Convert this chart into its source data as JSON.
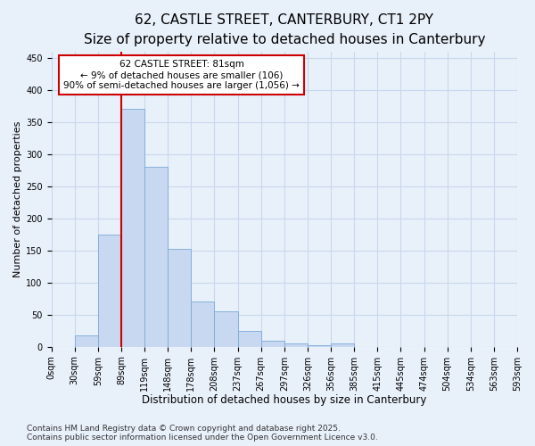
{
  "title_line1": "62, CASTLE STREET, CANTERBURY, CT1 2PY",
  "title_line2": "Size of property relative to detached houses in Canterbury",
  "xlabel": "Distribution of detached houses by size in Canterbury",
  "ylabel": "Number of detached properties",
  "bar_values": [
    0,
    18,
    175,
    370,
    280,
    153,
    71,
    55,
    25,
    10,
    5,
    2,
    5,
    0,
    0,
    0,
    0,
    0,
    0,
    0
  ],
  "tick_labels": [
    "0sqm",
    "30sqm",
    "59sqm",
    "89sqm",
    "119sqm",
    "148sqm",
    "178sqm",
    "208sqm",
    "237sqm",
    "267sqm",
    "297sqm",
    "326sqm",
    "356sqm",
    "385sqm",
    "415sqm",
    "445sqm",
    "474sqm",
    "504sqm",
    "534sqm",
    "563sqm",
    "593sqm"
  ],
  "bar_color": "#c8d8f0",
  "bar_edge_color": "#7aaad8",
  "bar_width": 1.0,
  "vline_x": 3.0,
  "vline_color": "#cc0000",
  "annotation_text": "62 CASTLE STREET: 81sqm\n← 9% of detached houses are smaller (106)\n90% of semi-detached houses are larger (1,056) →",
  "annotation_box_color": "#ffffff",
  "annotation_box_edge": "#cc0000",
  "ylim": [
    0,
    460
  ],
  "yticks": [
    0,
    50,
    100,
    150,
    200,
    250,
    300,
    350,
    400,
    450
  ],
  "grid_color": "#c8d8ec",
  "bg_color": "#e8f0fa",
  "footer_text": "Contains HM Land Registry data © Crown copyright and database right 2025.\nContains public sector information licensed under the Open Government Licence v3.0.",
  "title_fontsize": 11,
  "subtitle_fontsize": 9.5,
  "xlabel_fontsize": 8.5,
  "ylabel_fontsize": 8,
  "tick_fontsize": 7,
  "annotation_fontsize": 7.5,
  "footer_fontsize": 6.5
}
